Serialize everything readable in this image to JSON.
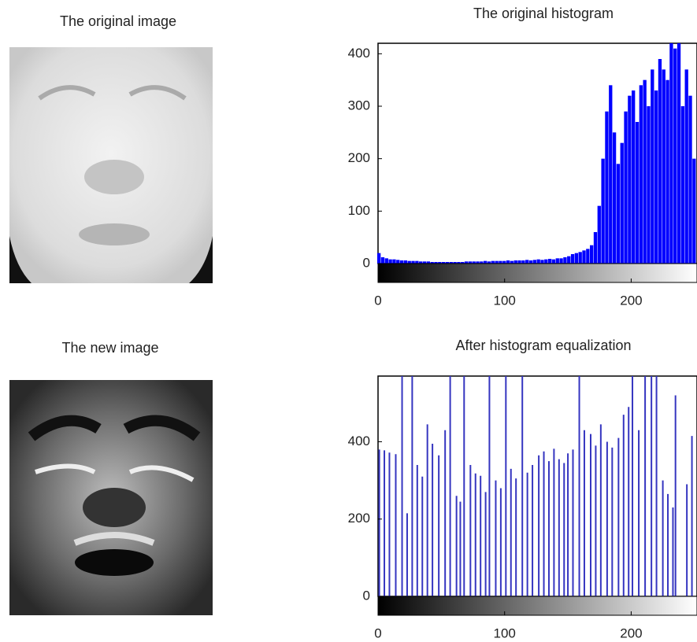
{
  "images": [
    {
      "title": "The original image"
    },
    {
      "title": "The new image"
    }
  ],
  "chart_data": [
    {
      "type": "bar",
      "title": "The original histogram",
      "color": "#0000ff",
      "x": [
        0,
        3,
        6,
        9,
        12,
        15,
        18,
        21,
        24,
        27,
        30,
        33,
        36,
        39,
        42,
        45,
        48,
        51,
        54,
        57,
        60,
        63,
        66,
        69,
        72,
        75,
        78,
        81,
        84,
        87,
        90,
        93,
        96,
        99,
        102,
        105,
        108,
        111,
        114,
        117,
        120,
        123,
        126,
        129,
        132,
        135,
        138,
        141,
        144,
        147,
        150,
        153,
        156,
        159,
        162,
        165,
        168,
        171,
        174,
        177,
        180,
        183,
        186,
        189,
        192,
        195,
        198,
        201,
        204,
        207,
        210,
        213,
        216,
        219,
        222,
        225,
        228,
        231,
        234,
        237,
        240,
        243,
        246,
        249
      ],
      "values": [
        20,
        12,
        10,
        8,
        8,
        7,
        6,
        6,
        5,
        5,
        5,
        4,
        4,
        4,
        3,
        3,
        3,
        3,
        3,
        3,
        3,
        3,
        3,
        4,
        4,
        4,
        4,
        4,
        5,
        4,
        5,
        5,
        5,
        5,
        6,
        5,
        6,
        6,
        6,
        7,
        6,
        7,
        8,
        7,
        8,
        9,
        8,
        10,
        10,
        12,
        14,
        18,
        20,
        22,
        25,
        28,
        35,
        60,
        110,
        200,
        290,
        340,
        250,
        190,
        230,
        290,
        320,
        330,
        270,
        340,
        350,
        300,
        370,
        330,
        390,
        370,
        350,
        420,
        410,
        420,
        300,
        370,
        320,
        200
      ],
      "xlim": [
        0,
        252
      ],
      "ylim": [
        0,
        420
      ],
      "xticks": [
        0,
        100,
        200
      ],
      "yticks": [
        0,
        100,
        200,
        300,
        400
      ]
    },
    {
      "type": "stem",
      "title": "After histogram equalization",
      "color": "#3535c0",
      "x": [
        1,
        5,
        9,
        14,
        19,
        23,
        27,
        31,
        35,
        39,
        43,
        48,
        53,
        57,
        62,
        65,
        68,
        73,
        77,
        81,
        85,
        88,
        93,
        97,
        101,
        105,
        109,
        114,
        118,
        122,
        127,
        131,
        135,
        139,
        143,
        147,
        150,
        154,
        159,
        163,
        168,
        172,
        176,
        181,
        185,
        190,
        194,
        198,
        201,
        206,
        211,
        216,
        220,
        225,
        229,
        233,
        235,
        244,
        248
      ],
      "values": [
        380,
        378,
        372,
        368,
        570,
        215,
        570,
        340,
        310,
        445,
        395,
        365,
        430,
        570,
        260,
        245,
        570,
        340,
        318,
        312,
        270,
        570,
        300,
        280,
        570,
        330,
        305,
        570,
        320,
        340,
        365,
        375,
        350,
        382,
        355,
        345,
        370,
        380,
        570,
        430,
        420,
        390,
        445,
        400,
        385,
        410,
        470,
        490,
        570,
        430,
        570,
        570,
        570,
        300,
        265,
        230,
        520,
        290,
        415
      ],
      "xlim": [
        0,
        252
      ],
      "ylim": [
        0,
        570
      ],
      "xticks": [
        0,
        100,
        200
      ],
      "yticks": [
        0,
        200,
        400
      ]
    }
  ]
}
